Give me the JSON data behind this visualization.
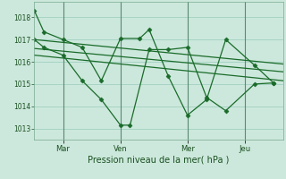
{
  "background_color": "#cce8dc",
  "grid_color": "#99ccbb",
  "line_color": "#1a6b2a",
  "marker_color": "#1a6b2a",
  "xlabel": "Pression niveau de la mer( hPa )",
  "ylim": [
    1012.5,
    1018.7
  ],
  "yticks": [
    1013,
    1014,
    1015,
    1016,
    1017,
    1018
  ],
  "x_tick_positions": [
    1.5,
    4.5,
    8.0,
    11.0
  ],
  "x_tick_labels": [
    "Mar",
    "Ven",
    "Mer",
    "Jeu"
  ],
  "vline_positions": [
    1.5,
    4.5,
    8.0,
    11.0
  ],
  "xlim": [
    0,
    13.0
  ],
  "series1_x": [
    0,
    0.5,
    1.5,
    2.5,
    3.5,
    4.5,
    5.5,
    6.0,
    7.0,
    8.0,
    9.0,
    10.0,
    11.5,
    12.5
  ],
  "series1_y": [
    1018.3,
    1017.35,
    1017.0,
    1016.65,
    1015.15,
    1017.05,
    1017.05,
    1017.45,
    1015.35,
    1013.6,
    1014.3,
    1017.0,
    1015.85,
    1015.05
  ],
  "series2_x": [
    0,
    0.5,
    1.5,
    2.5,
    3.5,
    4.5,
    5.0,
    6.0,
    7.0,
    8.0,
    9.0,
    10.0,
    11.5,
    12.5
  ],
  "series2_y": [
    1017.0,
    1016.65,
    1016.3,
    1015.15,
    1014.3,
    1013.15,
    1013.15,
    1016.55,
    1016.55,
    1016.65,
    1014.4,
    1013.8,
    1015.0,
    1015.05
  ],
  "line3_x": [
    0,
    13.0
  ],
  "line3_y": [
    1017.0,
    1015.9
  ],
  "line4_x": [
    0,
    13.0
  ],
  "line4_y": [
    1016.6,
    1015.55
  ],
  "line5_x": [
    0,
    13.0
  ],
  "line5_y": [
    1016.3,
    1015.15
  ]
}
